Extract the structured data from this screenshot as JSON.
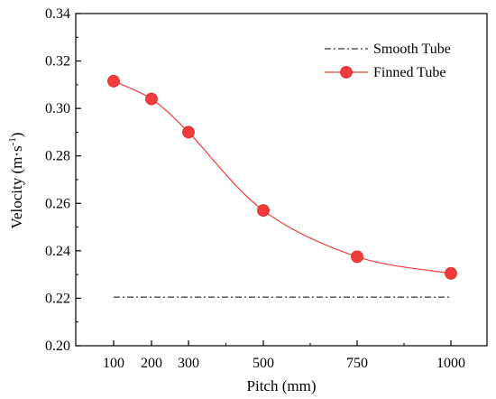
{
  "chart_data": {
    "type": "line",
    "xlabel": "Pitch (mm)",
    "ylabel_main": "Velocity (m·s",
    "ylabel_sup": "-1",
    "ylabel_end": ")",
    "ylim": [
      0.2,
      0.34
    ],
    "y_ticks": [
      "0.20",
      "0.22",
      "0.24",
      "0.26",
      "0.28",
      "0.30",
      "0.32",
      "0.34"
    ],
    "x_ticks": [
      "100",
      "200",
      "300",
      "500",
      "750",
      "1000"
    ],
    "x_tick_values": [
      100,
      200,
      300,
      500,
      750,
      1000
    ],
    "series": [
      {
        "name": "Smooth Tube",
        "style": "dash-dot",
        "color": "#000000",
        "x": [
          100,
          1000
        ],
        "y": [
          0.2205,
          0.2205
        ]
      },
      {
        "name": "Finned Tube",
        "style": "line-marker",
        "color": "#f03c3c",
        "x": [
          100,
          200,
          300,
          500,
          750,
          1000
        ],
        "y": [
          0.3115,
          0.304,
          0.29,
          0.257,
          0.2375,
          0.2305
        ]
      }
    ],
    "legend_position": "top-right",
    "grid": false
  }
}
